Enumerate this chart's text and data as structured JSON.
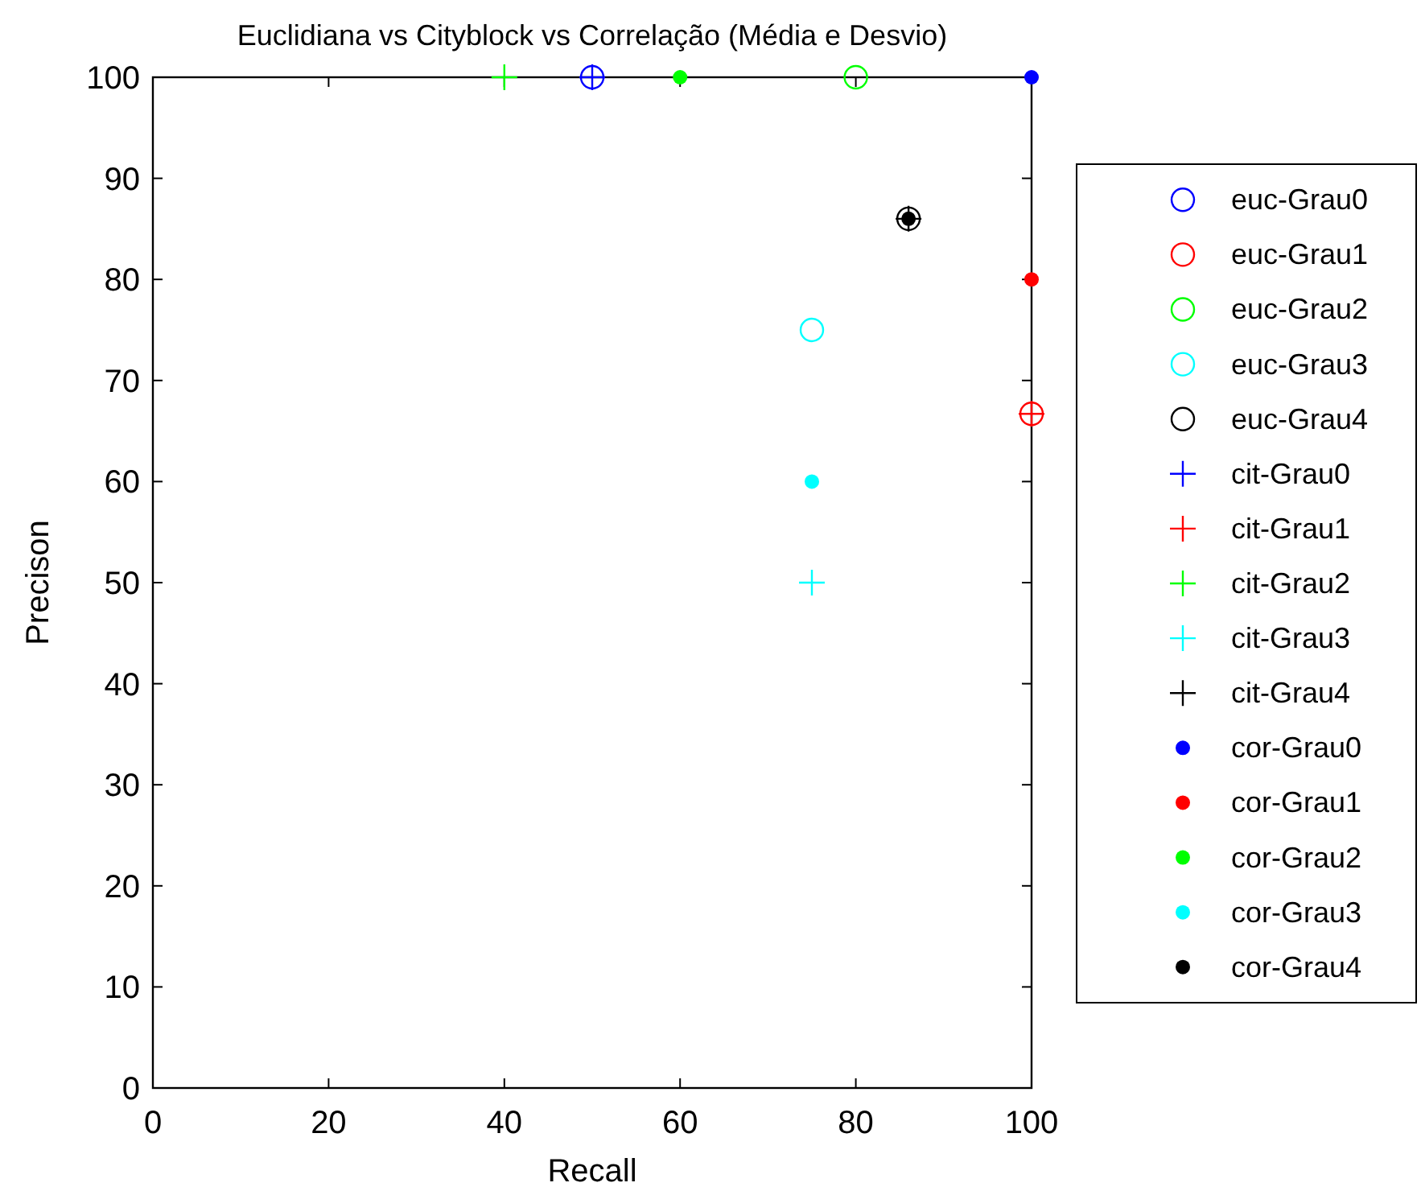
{
  "chart_data": {
    "type": "scatter",
    "title": "Euclidiana vs Cityblock vs Correlação (Média e Desvio)",
    "xlabel": "Recall",
    "ylabel": "Precison",
    "xlim": [
      0,
      100
    ],
    "ylim": [
      0,
      100
    ],
    "xticks": [
      0,
      20,
      40,
      60,
      80,
      100
    ],
    "yticks": [
      0,
      10,
      20,
      30,
      40,
      50,
      60,
      70,
      80,
      90,
      100
    ],
    "grid": false,
    "legend": "right",
    "series": [
      {
        "name": "euc-Grau0",
        "color": "#0000ff",
        "marker": "circle",
        "x": [
          50
        ],
        "values": [
          100
        ]
      },
      {
        "name": "euc-Grau1",
        "color": "#ff0000",
        "marker": "circle",
        "x": [
          100
        ],
        "values": [
          66.7
        ]
      },
      {
        "name": "euc-Grau2",
        "color": "#00ff00",
        "marker": "circle",
        "x": [
          80
        ],
        "values": [
          100
        ]
      },
      {
        "name": "euc-Grau3",
        "color": "#00ffff",
        "marker": "circle",
        "x": [
          75
        ],
        "values": [
          75
        ]
      },
      {
        "name": "euc-Grau4",
        "color": "#000000",
        "marker": "circle",
        "x": [
          86
        ],
        "values": [
          86
        ]
      },
      {
        "name": "cit-Grau0",
        "color": "#0000ff",
        "marker": "cross",
        "x": [
          50
        ],
        "values": [
          100
        ]
      },
      {
        "name": "cit-Grau1",
        "color": "#ff0000",
        "marker": "cross",
        "x": [
          100
        ],
        "values": [
          66.7
        ]
      },
      {
        "name": "cit-Grau2",
        "color": "#00ff00",
        "marker": "cross",
        "x": [
          40
        ],
        "values": [
          100
        ]
      },
      {
        "name": "cit-Grau3",
        "color": "#00ffff",
        "marker": "cross",
        "x": [
          75
        ],
        "values": [
          50
        ]
      },
      {
        "name": "cit-Grau4",
        "color": "#000000",
        "marker": "cross",
        "x": [
          86
        ],
        "values": [
          86
        ]
      },
      {
        "name": "cor-Grau0",
        "color": "#0000ff",
        "marker": "point",
        "x": [
          100
        ],
        "values": [
          100
        ]
      },
      {
        "name": "cor-Grau1",
        "color": "#ff0000",
        "marker": "point",
        "x": [
          100
        ],
        "values": [
          80
        ]
      },
      {
        "name": "cor-Grau2",
        "color": "#00ff00",
        "marker": "point",
        "x": [
          60
        ],
        "values": [
          100
        ]
      },
      {
        "name": "cor-Grau3",
        "color": "#00ffff",
        "marker": "point",
        "x": [
          75
        ],
        "values": [
          60
        ]
      },
      {
        "name": "cor-Grau4",
        "color": "#000000",
        "marker": "point",
        "x": [
          86
        ],
        "values": [
          86
        ]
      }
    ]
  }
}
